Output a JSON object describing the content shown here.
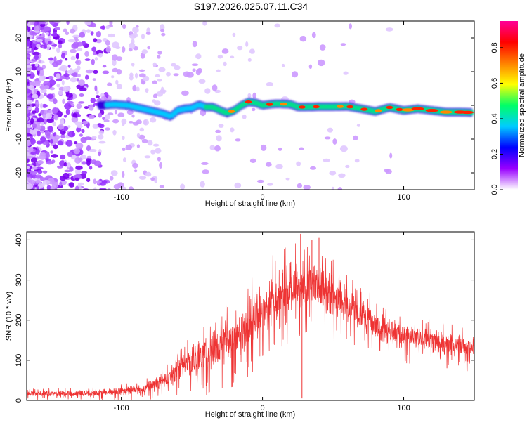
{
  "title": "S197.2026.025.07.11.C34",
  "chart_data": [
    {
      "type": "heatmap",
      "name": "spectrogram",
      "xlabel": "Height of straight line (km)",
      "ylabel": "Frequency (Hz)",
      "xlim": [
        -167,
        150
      ],
      "ylim": [
        -25,
        25
      ],
      "xticks": [
        -100,
        0,
        100
      ],
      "yticks": [
        20,
        10,
        0,
        -10,
        -20
      ],
      "colorbar": {
        "label": "Normalized spectral amplitude",
        "range": [
          0,
          0.95
        ],
        "ticks": [
          "0.0",
          "0.2",
          "0.4",
          "0.6",
          "0.8"
        ],
        "tick_values": [
          0.0,
          0.2,
          0.4,
          0.6,
          0.8
        ],
        "colors": [
          "#ffffff",
          "#9900ff",
          "#0000ff",
          "#00ccff",
          "#00ff66",
          "#ffff00",
          "#ff8000",
          "#ff0000",
          "#ff0099"
        ]
      },
      "ridge": {
        "x": [
          -115,
          -105,
          -95,
          -85,
          -80,
          -70,
          -65,
          -60,
          -55,
          -50,
          -45,
          -40,
          -35,
          -30,
          -25,
          -20,
          -15,
          -10,
          -5,
          0,
          5,
          10,
          15,
          20,
          25,
          30,
          40,
          50,
          60,
          70,
          80,
          90,
          100,
          110,
          120,
          130,
          140,
          148
        ],
        "y": [
          0,
          0.3,
          0,
          -1,
          -1.5,
          -2.5,
          -3.3,
          -1.5,
          -1,
          -0.8,
          0.2,
          -0.5,
          -0.5,
          -1.5,
          -2.3,
          -1.5,
          0,
          1,
          0.8,
          0,
          0.3,
          0.5,
          0.4,
          0.3,
          -0.5,
          -0.5,
          -0.4,
          -0.4,
          -0.3,
          -1,
          -1.8,
          -0.6,
          -1.5,
          -1,
          -1.5,
          -2,
          -2,
          -2.1
        ]
      }
    },
    {
      "type": "line",
      "name": "snr",
      "xlabel": "Height of straight line (km)",
      "ylabel": "SNR (10 * v/v)",
      "xlim": [
        -167,
        150
      ],
      "ylim": [
        0,
        420
      ],
      "xticks": [
        -100,
        0,
        100
      ],
      "yticks": [
        0,
        100,
        200,
        300,
        400
      ],
      "color": "#ee3333",
      "envelope": {
        "x": [
          -167,
          -130,
          -100,
          -85,
          -75,
          -65,
          -58,
          -52,
          -45,
          -35,
          -25,
          -15,
          -5,
          5,
          15,
          25,
          35,
          45,
          55,
          65,
          75,
          85,
          95,
          110,
          125,
          140,
          150
        ],
        "mean": [
          17,
          18,
          22,
          28,
          40,
          60,
          80,
          95,
          105,
          125,
          150,
          175,
          205,
          240,
          270,
          290,
          285,
          270,
          250,
          225,
          200,
          180,
          165,
          155,
          145,
          135,
          132
        ],
        "amplitude": [
          7,
          8,
          10,
          12,
          18,
          25,
          35,
          40,
          45,
          50,
          60,
          65,
          70,
          70,
          65,
          60,
          60,
          55,
          50,
          45,
          40,
          35,
          35,
          30,
          30,
          28,
          28
        ]
      },
      "spikes": [
        {
          "x": -58,
          "y": 108
        },
        {
          "x": -53,
          "y": 150
        },
        {
          "x": -42,
          "y": 135
        },
        {
          "x": 20,
          "y": 345
        },
        {
          "x": 27,
          "y": 415
        },
        {
          "x": 28,
          "y": 5
        },
        {
          "x": 35,
          "y": 400
        },
        {
          "x": 40,
          "y": 405
        }
      ]
    }
  ]
}
